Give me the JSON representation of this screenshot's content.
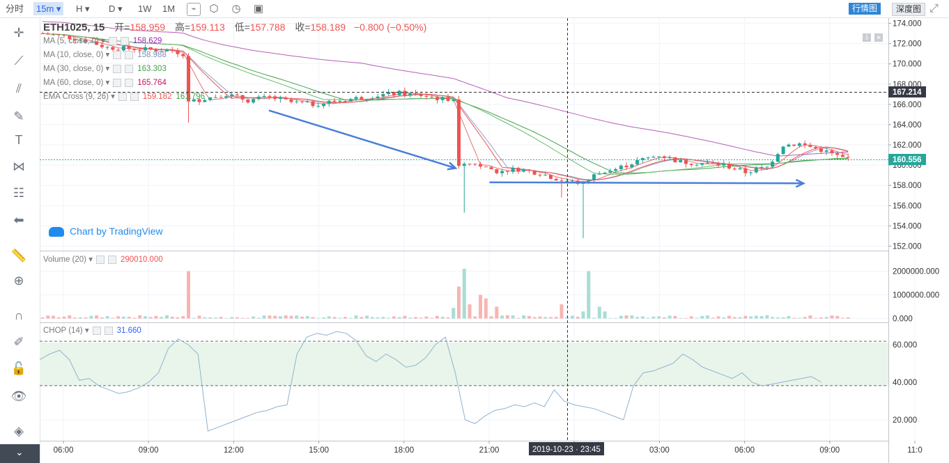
{
  "toolbar": {
    "timeshare": "分时",
    "interval": "15m",
    "hour": "H",
    "day": "D",
    "week": "1W",
    "month": "1M",
    "market_tab": "行情图",
    "depth_tab": "深度图"
  },
  "symbol": {
    "name": "ETH1025, 15",
    "open_label": "开=",
    "open": "158.959",
    "high_label": "高=",
    "high": "159.113",
    "low_label": "低=",
    "low": "157.788",
    "close_label": "收=",
    "close": "158.189",
    "change": "−0.800 (−0.50%)"
  },
  "indicators": [
    {
      "label": "MA (5, close, 0)",
      "value": "158.629",
      "color": "#9c27b0"
    },
    {
      "label": "MA (10, close, 0)",
      "value": "158.988",
      "color": "#90a4c8"
    },
    {
      "label": "MA (30, close, 0)",
      "value": "163.303",
      "color": "#43a047"
    },
    {
      "label": "MA (60, close, 0)",
      "value": "165.764",
      "color": "#c2185b"
    }
  ],
  "ema_cross": {
    "label": "EMA Cross (9, 26)",
    "v1": "159.182",
    "v2": "161.796"
  },
  "watermark": "Chart by TradingView",
  "volume_legend": {
    "label": "Volume (20)",
    "value": "290010.000"
  },
  "chop_legend": {
    "label": "CHOP (14)",
    "value": "31.660"
  },
  "crosshair_time": "2019-10-23 · 23:45",
  "crosshair_price": "167.214",
  "last_price": "160.556",
  "colors": {
    "up": "#26a69a",
    "down": "#ef5350",
    "arrow": "#4a7fd8",
    "ma_purple": "#b45fb4"
  },
  "chart_data": {
    "type": "candlestick",
    "x_labels": [
      "06:00",
      "09:00",
      "12:00",
      "15:00",
      "18:00",
      "21:00",
      "00:00",
      "03:00",
      "06:00",
      "09:00",
      "11:0"
    ],
    "price_ticks": [
      "174.000",
      "172.000",
      "170.000",
      "168.000",
      "166.000",
      "164.000",
      "162.000",
      "160.000",
      "158.000",
      "156.000",
      "154.000",
      "152.000"
    ],
    "ylim": [
      151.5,
      174.8
    ],
    "volume_ticks": [
      "2000000.000",
      "1000000.000",
      "0.000"
    ],
    "chop_ticks": [
      "60.000",
      "40.000",
      "20.000"
    ],
    "chop_bands": [
      61.8,
      38.2
    ],
    "price_path": [
      [
        0,
        173.0
      ],
      [
        4,
        172.7
      ],
      [
        8,
        172.3
      ],
      [
        12,
        171.6
      ],
      [
        16,
        171.5
      ],
      [
        20,
        171.4
      ],
      [
        24,
        171.3
      ],
      [
        26,
        171.0
      ],
      [
        27,
        166.2
      ],
      [
        30,
        166.6
      ],
      [
        34,
        167.0
      ],
      [
        38,
        166.4
      ],
      [
        42,
        166.7
      ],
      [
        46,
        166.2
      ],
      [
        50,
        166.0
      ],
      [
        54,
        166.3
      ],
      [
        58,
        166.6
      ],
      [
        62,
        166.9
      ],
      [
        66,
        167.1
      ],
      [
        70,
        166.9
      ],
      [
        74,
        166.5
      ],
      [
        76,
        166.6
      ],
      [
        77,
        160.0
      ],
      [
        80,
        160.2
      ],
      [
        84,
        159.4
      ],
      [
        88,
        159.6
      ],
      [
        92,
        159.2
      ],
      [
        96,
        158.5
      ],
      [
        100,
        158.2
      ],
      [
        102,
        159.0
      ],
      [
        106,
        159.6
      ],
      [
        110,
        160.4
      ],
      [
        114,
        161.0
      ],
      [
        118,
        160.3
      ],
      [
        122,
        160.2
      ],
      [
        126,
        160.0
      ],
      [
        130,
        159.3
      ],
      [
        134,
        159.8
      ],
      [
        137,
        162.0
      ],
      [
        140,
        162.1
      ],
      [
        144,
        161.5
      ],
      [
        148,
        160.7
      ]
    ],
    "arrows": [
      {
        "from": [
          0.27,
          165.4
        ],
        "to": [
          0.49,
          159.7
        ]
      },
      {
        "from": [
          0.53,
          158.3
        ],
        "to": [
          0.9,
          158.2
        ]
      }
    ]
  }
}
